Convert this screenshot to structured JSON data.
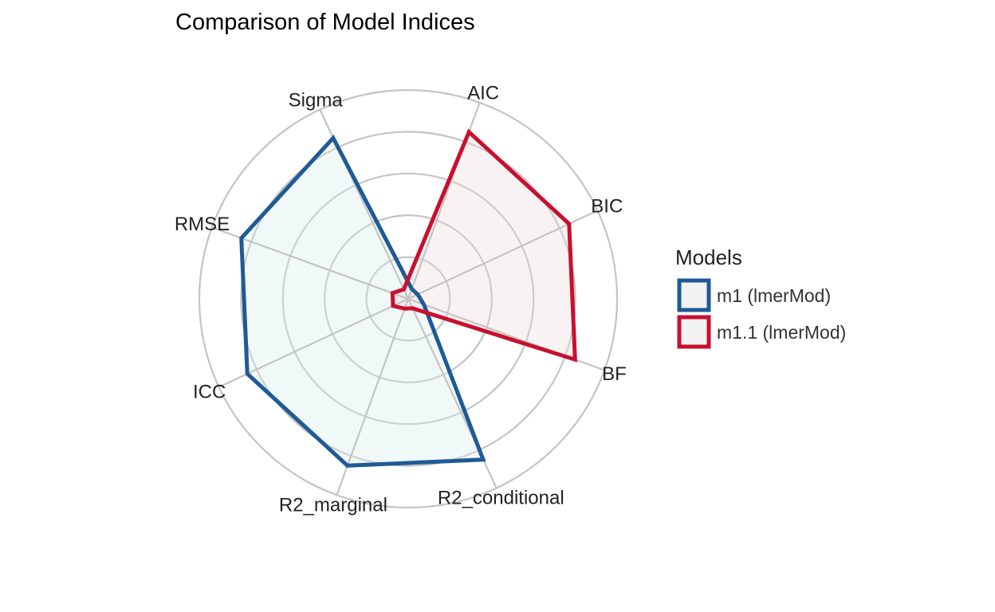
{
  "chart_data": {
    "type": "radar",
    "title": "Comparison of Model Indices",
    "axes": [
      "AIC",
      "BIC",
      "BF",
      "R2_conditional",
      "R2_marginal",
      "ICC",
      "RMSE",
      "Sigma"
    ],
    "range": [
      0,
      1
    ],
    "gridlines": [
      0.2,
      0.4,
      0.6,
      0.8,
      1.0
    ],
    "grid": true,
    "legend": {
      "title": "Models",
      "position": "right"
    },
    "series": [
      {
        "name": "m1 (lmerMod)",
        "color": "#1f5a96",
        "fill": "#d8ecec",
        "values": [
          0.05,
          0.05,
          0.08,
          0.85,
          0.85,
          0.85,
          0.85,
          0.85
        ]
      },
      {
        "name": "m1.1 (lmerMod)",
        "color": "#c8102e",
        "fill": "#efdada",
        "values": [
          0.85,
          0.85,
          0.85,
          0.05,
          0.05,
          0.08,
          0.08,
          0.05
        ]
      }
    ]
  }
}
